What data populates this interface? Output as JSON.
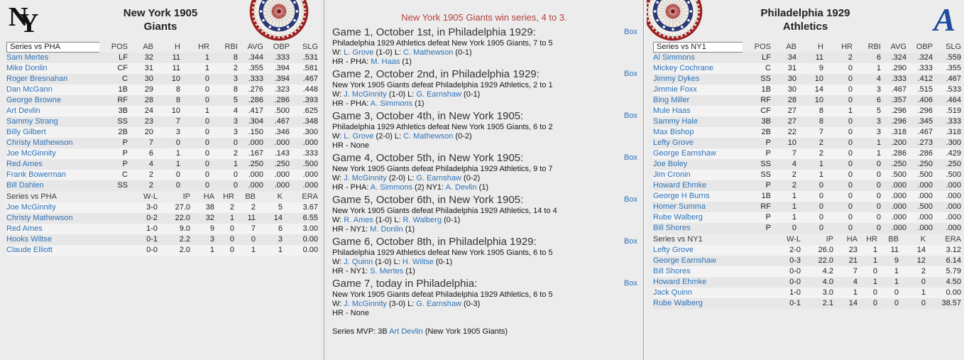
{
  "colors": {
    "link_blue": "#2e73b8",
    "banner_red": "#b4403c",
    "athletics_navy": "#1d4d9e",
    "background": "#ececec"
  },
  "box_label": "Box",
  "banner": "New York 1905 Giants win series, 4 to 3.",
  "mvp": [
    {
      "t": "Series MVP: 3B "
    },
    {
      "t": "Art Devlin",
      "link": true
    },
    {
      "t": " (New York 1905 Giants)"
    }
  ],
  "left_team": {
    "logo": "NY",
    "title1": "New York 1905",
    "title2": "Giants",
    "filter": "Series vs PHA",
    "batting_headers": [
      "POS",
      "AB",
      "H",
      "HR",
      "RBI",
      "AVG",
      "OBP",
      "SLG"
    ],
    "batting": [
      {
        "name": "Sam Mertes",
        "pos": "LF",
        "ab": "32",
        "h": "11",
        "hr": "1",
        "rbi": "8",
        "avg": ".344",
        "obp": ".333",
        "slg": ".531"
      },
      {
        "name": "Mike Donlin",
        "pos": "CF",
        "ab": "31",
        "h": "11",
        "hr": "1",
        "rbi": "2",
        "avg": ".355",
        "obp": ".394",
        "slg": ".581"
      },
      {
        "name": "Roger Bresnahan",
        "pos": "C",
        "ab": "30",
        "h": "10",
        "hr": "0",
        "rbi": "3",
        "avg": ".333",
        "obp": ".394",
        "slg": ".467"
      },
      {
        "name": "Dan McGann",
        "pos": "1B",
        "ab": "29",
        "h": "8",
        "hr": "0",
        "rbi": "8",
        "avg": ".276",
        "obp": ".323",
        "slg": ".448"
      },
      {
        "name": "George Browne",
        "pos": "RF",
        "ab": "28",
        "h": "8",
        "hr": "0",
        "rbi": "5",
        "avg": ".286",
        "obp": ".286",
        "slg": ".393"
      },
      {
        "name": "Art Devlin",
        "pos": "3B",
        "ab": "24",
        "h": "10",
        "hr": "1",
        "rbi": "4",
        "avg": ".417",
        "obp": ".500",
        "slg": ".625"
      },
      {
        "name": "Sammy Strang",
        "pos": "SS",
        "ab": "23",
        "h": "7",
        "hr": "0",
        "rbi": "3",
        "avg": ".304",
        "obp": ".467",
        "slg": ".348"
      },
      {
        "name": "Billy Gilbert",
        "pos": "2B",
        "ab": "20",
        "h": "3",
        "hr": "0",
        "rbi": "3",
        "avg": ".150",
        "obp": ".346",
        "slg": ".300"
      },
      {
        "name": "Christy Mathewson",
        "pos": "P",
        "ab": "7",
        "h": "0",
        "hr": "0",
        "rbi": "0",
        "avg": ".000",
        "obp": ".000",
        "slg": ".000"
      },
      {
        "name": "Joe McGinnity",
        "pos": "P",
        "ab": "6",
        "h": "1",
        "hr": "0",
        "rbi": "2",
        "avg": ".167",
        "obp": ".143",
        "slg": ".333"
      },
      {
        "name": "Red Ames",
        "pos": "P",
        "ab": "4",
        "h": "1",
        "hr": "0",
        "rbi": "1",
        "avg": ".250",
        "obp": ".250",
        "slg": ".500"
      },
      {
        "name": "Frank Bowerman",
        "pos": "C",
        "ab": "2",
        "h": "0",
        "hr": "0",
        "rbi": "0",
        "avg": ".000",
        "obp": ".000",
        "slg": ".000"
      },
      {
        "name": "Bill Dahlen",
        "pos": "SS",
        "ab": "2",
        "h": "0",
        "hr": "0",
        "rbi": "0",
        "avg": ".000",
        "obp": ".000",
        "slg": ".000"
      }
    ],
    "pitching_label": "Series vs PHA",
    "pitching_headers": [
      "W-L",
      "IP",
      "HA",
      "HR",
      "BB",
      "K",
      "ERA"
    ],
    "pitching": [
      {
        "name": "Joe McGinnity",
        "wl": "3-0",
        "ip": "27.0",
        "ha": "38",
        "hr": "2",
        "bb": "2",
        "k": "5",
        "era": "3.67"
      },
      {
        "name": "Christy Mathewson",
        "wl": "0-2",
        "ip": "22.0",
        "ha": "32",
        "hr": "1",
        "bb": "11",
        "k": "14",
        "era": "6.55"
      },
      {
        "name": "Red Ames",
        "wl": "1-0",
        "ip": "9.0",
        "ha": "9",
        "hr": "0",
        "bb": "7",
        "k": "6",
        "era": "3.00"
      },
      {
        "name": "Hooks Wiltse",
        "wl": "0-1",
        "ip": "2.2",
        "ha": "3",
        "hr": "0",
        "bb": "0",
        "k": "3",
        "era": "0.00"
      },
      {
        "name": "Claude Elliott",
        "wl": "0-0",
        "ip": "2.0",
        "ha": "1",
        "hr": "0",
        "bb": "1",
        "k": "1",
        "era": "0.00"
      }
    ]
  },
  "right_team": {
    "logo": "A",
    "title1": "Philadelphia 1929",
    "title2": "Athletics",
    "filter": "Series vs NY1",
    "batting_headers": [
      "POS",
      "AB",
      "H",
      "HR",
      "RBI",
      "AVG",
      "OBP",
      "SLG"
    ],
    "batting": [
      {
        "name": "Al Simmons",
        "pos": "LF",
        "ab": "34",
        "h": "11",
        "hr": "2",
        "rbi": "6",
        "avg": ".324",
        "obp": ".324",
        "slg": ".559"
      },
      {
        "name": "Mickey Cochrane",
        "pos": "C",
        "ab": "31",
        "h": "9",
        "hr": "0",
        "rbi": "1",
        "avg": ".290",
        "obp": ".333",
        "slg": ".355"
      },
      {
        "name": "Jimmy Dykes",
        "pos": "SS",
        "ab": "30",
        "h": "10",
        "hr": "0",
        "rbi": "4",
        "avg": ".333",
        "obp": ".412",
        "slg": ".467"
      },
      {
        "name": "Jimmie Foxx",
        "pos": "1B",
        "ab": "30",
        "h": "14",
        "hr": "0",
        "rbi": "3",
        "avg": ".467",
        "obp": ".515",
        "slg": ".533"
      },
      {
        "name": "Bing Miller",
        "pos": "RF",
        "ab": "28",
        "h": "10",
        "hr": "0",
        "rbi": "6",
        "avg": ".357",
        "obp": ".406",
        "slg": ".464"
      },
      {
        "name": "Mule Haas",
        "pos": "CF",
        "ab": "27",
        "h": "8",
        "hr": "1",
        "rbi": "5",
        "avg": ".296",
        "obp": ".296",
        "slg": ".519"
      },
      {
        "name": "Sammy Hale",
        "pos": "3B",
        "ab": "27",
        "h": "8",
        "hr": "0",
        "rbi": "3",
        "avg": ".296",
        "obp": ".345",
        "slg": ".333"
      },
      {
        "name": "Max Bishop",
        "pos": "2B",
        "ab": "22",
        "h": "7",
        "hr": "0",
        "rbi": "3",
        "avg": ".318",
        "obp": ".467",
        "slg": ".318"
      },
      {
        "name": "Lefty Grove",
        "pos": "P",
        "ab": "10",
        "h": "2",
        "hr": "0",
        "rbi": "1",
        "avg": ".200",
        "obp": ".273",
        "slg": ".300"
      },
      {
        "name": "George Earnshaw",
        "pos": "P",
        "ab": "7",
        "h": "2",
        "hr": "0",
        "rbi": "1",
        "avg": ".286",
        "obp": ".286",
        "slg": ".429"
      },
      {
        "name": "Joe Boley",
        "pos": "SS",
        "ab": "4",
        "h": "1",
        "hr": "0",
        "rbi": "0",
        "avg": ".250",
        "obp": ".250",
        "slg": ".250"
      },
      {
        "name": "Jim Cronin",
        "pos": "SS",
        "ab": "2",
        "h": "1",
        "hr": "0",
        "rbi": "0",
        "avg": ".500",
        "obp": ".500",
        "slg": ".500"
      },
      {
        "name": "Howard Ehmke",
        "pos": "P",
        "ab": "2",
        "h": "0",
        "hr": "0",
        "rbi": "0",
        "avg": ".000",
        "obp": ".000",
        "slg": ".000"
      },
      {
        "name": "George H Burns",
        "pos": "1B",
        "ab": "1",
        "h": "0",
        "hr": "0",
        "rbi": "0",
        "avg": ".000",
        "obp": ".000",
        "slg": ".000"
      },
      {
        "name": "Homer Summa",
        "pos": "RF",
        "ab": "1",
        "h": "0",
        "hr": "0",
        "rbi": "0",
        "avg": ".000",
        "obp": ".500",
        "slg": ".000"
      },
      {
        "name": "Rube Walberg",
        "pos": "P",
        "ab": "1",
        "h": "0",
        "hr": "0",
        "rbi": "0",
        "avg": ".000",
        "obp": ".000",
        "slg": ".000"
      },
      {
        "name": "Bill Shores",
        "pos": "P",
        "ab": "0",
        "h": "0",
        "hr": "0",
        "rbi": "0",
        "avg": ".000",
        "obp": ".000",
        "slg": ".000"
      }
    ],
    "pitching_label": "Series vs NY1",
    "pitching_headers": [
      "W-L",
      "IP",
      "HA",
      "HR",
      "BB",
      "K",
      "ERA"
    ],
    "pitching": [
      {
        "name": "Lefty Grove",
        "wl": "2-0",
        "ip": "26.0",
        "ha": "23",
        "hr": "1",
        "bb": "11",
        "k": "14",
        "era": "3.12"
      },
      {
        "name": "George Earnshaw",
        "wl": "0-3",
        "ip": "22.0",
        "ha": "21",
        "hr": "1",
        "bb": "9",
        "k": "12",
        "era": "6.14"
      },
      {
        "name": "Bill Shores",
        "wl": "0-0",
        "ip": "4.2",
        "ha": "7",
        "hr": "0",
        "bb": "1",
        "k": "2",
        "era": "5.79"
      },
      {
        "name": "Howard Ehmke",
        "wl": "0-0",
        "ip": "4.0",
        "ha": "4",
        "hr": "1",
        "bb": "1",
        "k": "0",
        "era": "4.50"
      },
      {
        "name": "Jack Quinn",
        "wl": "1-0",
        "ip": "3.0",
        "ha": "1",
        "hr": "0",
        "bb": "0",
        "k": "1",
        "era": "0.00"
      },
      {
        "name": "Rube Walberg",
        "wl": "0-1",
        "ip": "2.1",
        "ha": "14",
        "hr": "0",
        "bb": "0",
        "k": "0",
        "era": "38.57"
      }
    ]
  },
  "games": [
    {
      "heading": "Game 1, October 1st, in Philadelphia 1929:",
      "lines": [
        [
          {
            "t": "Philadelphia 1929 Athletics defeat New York 1905 Giants, 7 to 5"
          }
        ],
        [
          {
            "t": "W: "
          },
          {
            "t": "L. Grove",
            "link": true
          },
          {
            "t": " (1-0) L: "
          },
          {
            "t": "C. Mathewson",
            "link": true
          },
          {
            "t": " (0-1)"
          }
        ],
        [
          {
            "t": "HR - PHA: "
          },
          {
            "t": "M. Haas",
            "link": true
          },
          {
            "t": " (1)"
          }
        ]
      ]
    },
    {
      "heading": "Game 2, October 2nd, in Philadelphia 1929:",
      "lines": [
        [
          {
            "t": "New York 1905 Giants defeat Philadelphia 1929 Athletics, 2 to 1"
          }
        ],
        [
          {
            "t": "W: "
          },
          {
            "t": "J. McGinnity",
            "link": true
          },
          {
            "t": " (1-0) L: "
          },
          {
            "t": "G. Earnshaw",
            "link": true
          },
          {
            "t": " (0-1)"
          }
        ],
        [
          {
            "t": "HR - PHA: "
          },
          {
            "t": "A. Simmons",
            "link": true
          },
          {
            "t": " (1)"
          }
        ]
      ]
    },
    {
      "heading": "Game 3, October 4th, in New York 1905:",
      "lines": [
        [
          {
            "t": "Philadelphia 1929 Athletics defeat New York 1905 Giants, 6 to 2"
          }
        ],
        [
          {
            "t": "W: "
          },
          {
            "t": "L. Grove",
            "link": true
          },
          {
            "t": " (2-0) L: "
          },
          {
            "t": "C. Mathewson",
            "link": true
          },
          {
            "t": " (0-2)"
          }
        ],
        [
          {
            "t": "HR - None"
          }
        ]
      ]
    },
    {
      "heading": "Game 4, October 5th, in New York 1905:",
      "lines": [
        [
          {
            "t": "New York 1905 Giants defeat Philadelphia 1929 Athletics, 9 to 7"
          }
        ],
        [
          {
            "t": "W: "
          },
          {
            "t": "J. McGinnity",
            "link": true
          },
          {
            "t": " (2-0) L: "
          },
          {
            "t": "G. Earnshaw",
            "link": true
          },
          {
            "t": " (0-2)"
          }
        ],
        [
          {
            "t": "HR - PHA: "
          },
          {
            "t": "A. Simmons",
            "link": true
          },
          {
            "t": " (2)  NY1: "
          },
          {
            "t": "A. Devlin",
            "link": true
          },
          {
            "t": " (1)"
          }
        ]
      ]
    },
    {
      "heading": "Game 5, October 6th, in New York 1905:",
      "lines": [
        [
          {
            "t": "New York 1905 Giants defeat Philadelphia 1929 Athletics, 14 to 4"
          }
        ],
        [
          {
            "t": "W: "
          },
          {
            "t": "R. Ames",
            "link": true
          },
          {
            "t": " (1-0) L: "
          },
          {
            "t": "R. Walberg",
            "link": true
          },
          {
            "t": " (0-1)"
          }
        ],
        [
          {
            "t": "HR - NY1: "
          },
          {
            "t": "M. Donlin",
            "link": true
          },
          {
            "t": " (1)"
          }
        ]
      ]
    },
    {
      "heading": "Game 6, October 8th, in Philadelphia 1929:",
      "lines": [
        [
          {
            "t": "Philadelphia 1929 Athletics defeat New York 1905 Giants, 6 to 5"
          }
        ],
        [
          {
            "t": "W: "
          },
          {
            "t": "J. Quinn",
            "link": true
          },
          {
            "t": " (1-0) L: "
          },
          {
            "t": "H. Wiltse",
            "link": true
          },
          {
            "t": " (0-1)"
          }
        ],
        [
          {
            "t": "HR - NY1: "
          },
          {
            "t": "S. Mertes",
            "link": true
          },
          {
            "t": " (1)"
          }
        ]
      ]
    },
    {
      "heading": "Game 7, today in Philadelphia:",
      "lines": [
        [
          {
            "t": "New York 1905 Giants defeat Philadelphia 1929 Athletics, 6 to 5"
          }
        ],
        [
          {
            "t": "W: "
          },
          {
            "t": "J. McGinnity",
            "link": true
          },
          {
            "t": " (3-0) L: "
          },
          {
            "t": "G. Earnshaw",
            "link": true
          },
          {
            "t": " (0-3)"
          }
        ],
        [
          {
            "t": "HR - None"
          }
        ]
      ]
    }
  ]
}
